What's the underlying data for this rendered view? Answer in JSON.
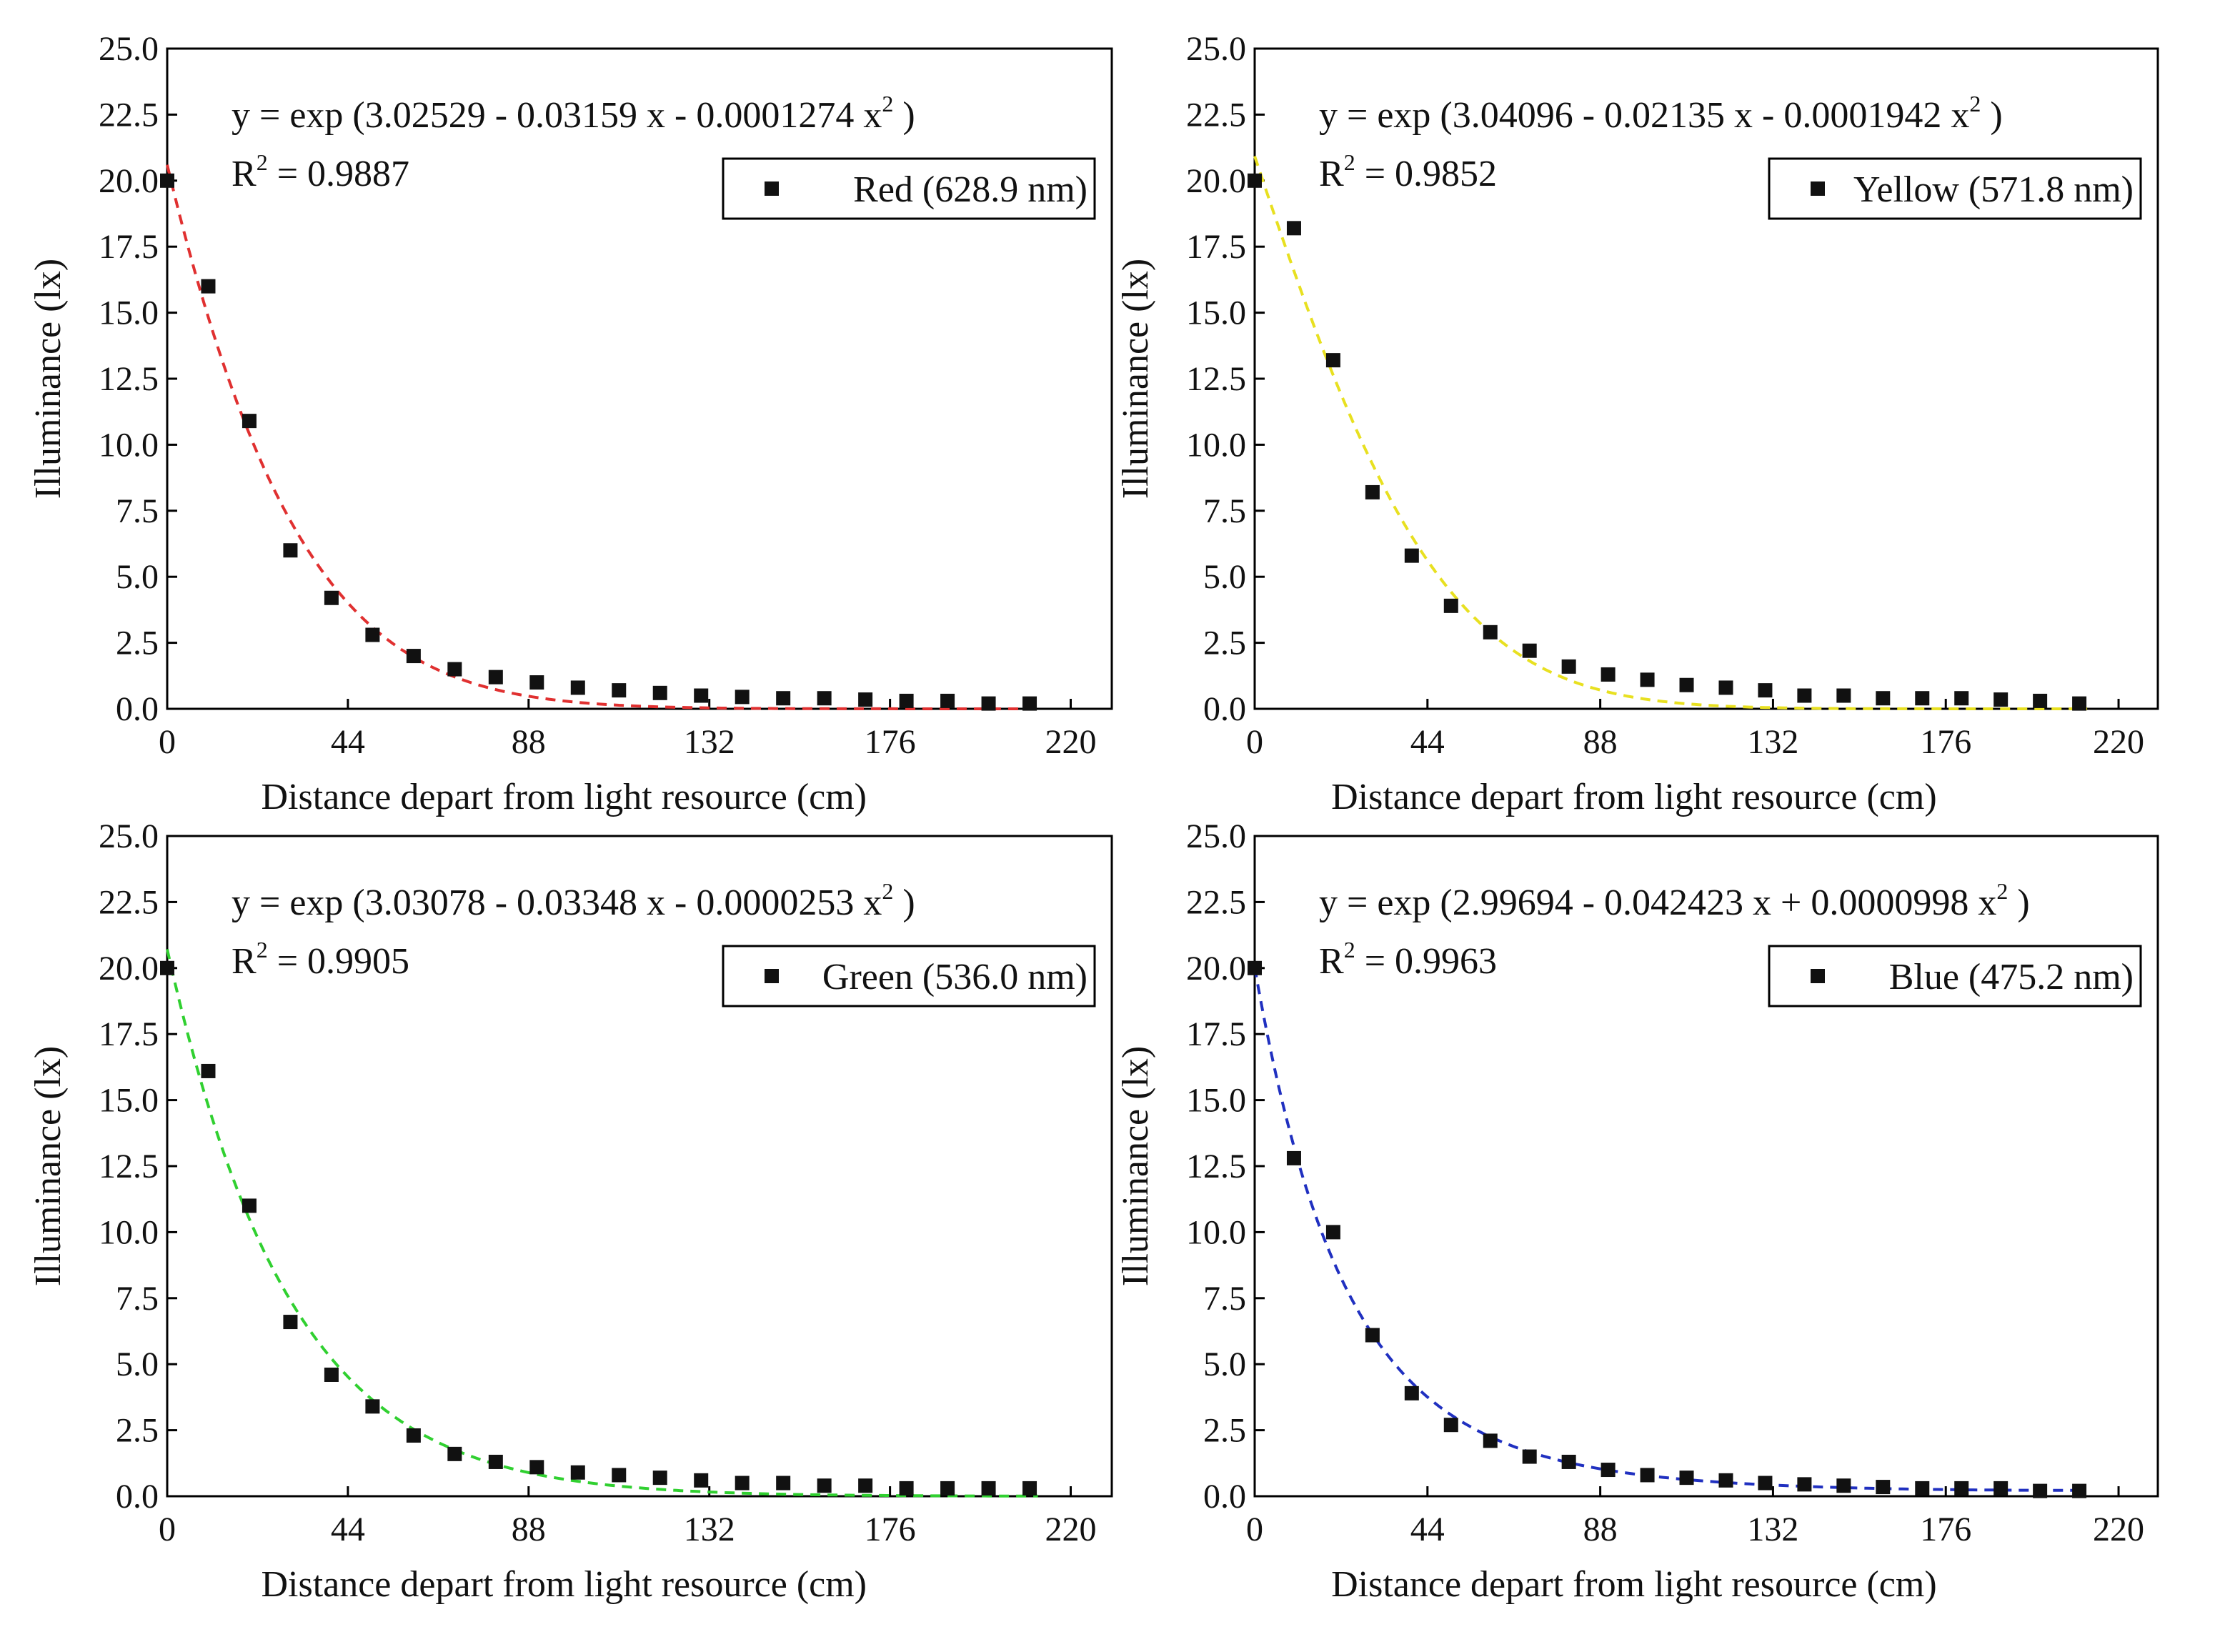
{
  "chart_data": [
    {
      "type": "scatter",
      "panel": "red",
      "xlabel": "Distance depart from light resource (cm)",
      "ylabel": "Illuminance (lx)",
      "xlim": [
        0,
        230
      ],
      "ylim": [
        0,
        25
      ],
      "xticks": [
        0,
        44,
        88,
        132,
        176,
        220
      ],
      "yticks": [
        0.0,
        2.5,
        5.0,
        7.5,
        10.0,
        12.5,
        15.0,
        17.5,
        20.0,
        22.5,
        25.0
      ],
      "legend": "Red (628.9 nm)",
      "legend_position": "top-right",
      "fit_color": "#e03030",
      "equation": {
        "prefix": "y = exp (3.02529 - 0.03159 x - 0.0001274 x",
        "sup": "2",
        "suffix": " )"
      },
      "r2": {
        "prefix": "R",
        "sup": "2",
        "value": " = 0.9887"
      },
      "fit": {
        "a": 3.02529,
        "b": -0.03159,
        "c": -0.0001274
      },
      "series": [
        {
          "name": "Red (628.9 nm)",
          "x": [
            0,
            10,
            20,
            30,
            40,
            50,
            60,
            70,
            80,
            90,
            100,
            110,
            120,
            130,
            140,
            150,
            160,
            170,
            180,
            190,
            200,
            210
          ],
          "y": [
            20.0,
            16.0,
            10.9,
            6.0,
            4.2,
            2.8,
            2.0,
            1.5,
            1.2,
            1.0,
            0.8,
            0.7,
            0.6,
            0.5,
            0.45,
            0.4,
            0.4,
            0.35,
            0.3,
            0.3,
            0.2,
            0.2
          ]
        }
      ]
    },
    {
      "type": "scatter",
      "panel": "yellow",
      "xlabel": "Distance depart from light resource (cm)",
      "ylabel": "Illuminance (lx)",
      "xlim": [
        0,
        230
      ],
      "ylim": [
        0,
        25
      ],
      "xticks": [
        0,
        44,
        88,
        132,
        176,
        220
      ],
      "yticks": [
        0.0,
        2.5,
        5.0,
        7.5,
        10.0,
        12.5,
        15.0,
        17.5,
        20.0,
        22.5,
        25.0
      ],
      "legend": "Yellow (571.8 nm)",
      "legend_position": "top-right",
      "fit_color": "#e8e020",
      "equation": {
        "prefix": "y = exp (3.04096 - 0.02135 x - 0.0001942 x",
        "sup": "2",
        "suffix": " )"
      },
      "r2": {
        "prefix": "R",
        "sup": "2",
        "value": " = 0.9852"
      },
      "fit": {
        "a": 3.04096,
        "b": -0.02135,
        "c": -0.0001942
      },
      "series": [
        {
          "name": "Yellow (571.8 nm)",
          "x": [
            0,
            10,
            20,
            30,
            40,
            50,
            60,
            70,
            80,
            90,
            100,
            110,
            120,
            130,
            140,
            150,
            160,
            170,
            180,
            190,
            200,
            210
          ],
          "y": [
            20.0,
            18.2,
            13.2,
            8.2,
            5.8,
            3.9,
            2.9,
            2.2,
            1.6,
            1.3,
            1.1,
            0.9,
            0.8,
            0.7,
            0.5,
            0.5,
            0.4,
            0.4,
            0.4,
            0.35,
            0.3,
            0.2
          ]
        }
      ]
    },
    {
      "type": "scatter",
      "panel": "green",
      "xlabel": "Distance depart from light resource (cm)",
      "ylabel": "Illuminance (lx)",
      "xlim": [
        0,
        230
      ],
      "ylim": [
        0,
        25
      ],
      "xticks": [
        0,
        44,
        88,
        132,
        176,
        220
      ],
      "yticks": [
        0.0,
        2.5,
        5.0,
        7.5,
        10.0,
        12.5,
        15.0,
        17.5,
        20.0,
        22.5,
        25.0
      ],
      "legend": "Green (536.0 nm)",
      "legend_position": "top-right",
      "fit_color": "#30d030",
      "equation": {
        "prefix": "y = exp (3.03078 - 0.03348 x - 0.0000253 x",
        "sup": "2",
        "suffix": " )"
      },
      "r2": {
        "prefix": "R",
        "sup": "2",
        "value": " = 0.9905"
      },
      "fit": {
        "a": 3.03078,
        "b": -0.03348,
        "c": -2.53e-05
      },
      "series": [
        {
          "name": "Green (536.0 nm)",
          "x": [
            0,
            10,
            20,
            30,
            40,
            50,
            60,
            70,
            80,
            90,
            100,
            110,
            120,
            130,
            140,
            150,
            160,
            170,
            180,
            190,
            200,
            210
          ],
          "y": [
            20.0,
            16.1,
            11.0,
            6.6,
            4.6,
            3.4,
            2.3,
            1.6,
            1.3,
            1.1,
            0.9,
            0.8,
            0.7,
            0.6,
            0.5,
            0.5,
            0.4,
            0.4,
            0.3,
            0.3,
            0.3,
            0.3
          ]
        }
      ]
    },
    {
      "type": "scatter",
      "panel": "blue",
      "xlabel": "Distance depart from light resource (cm)",
      "ylabel": "Illuminance (lx)",
      "xlim": [
        0,
        230
      ],
      "ylim": [
        0,
        25
      ],
      "xticks": [
        0,
        44,
        88,
        132,
        176,
        220
      ],
      "yticks": [
        0.0,
        2.5,
        5.0,
        7.5,
        10.0,
        12.5,
        15.0,
        17.5,
        20.0,
        22.5,
        25.0
      ],
      "legend": "Blue (475.2 nm)",
      "legend_position": "top-right",
      "fit_color": "#2030c0",
      "equation": {
        "prefix": "y = exp (2.99694 - 0.042423 x + 0.0000998 x",
        "sup": "2",
        "suffix": " )"
      },
      "r2": {
        "prefix": "R",
        "sup": "2",
        "value": " = 0.9963"
      },
      "fit": {
        "a": 2.99694,
        "b": -0.042423,
        "c": 9.98e-05
      },
      "series": [
        {
          "name": "Blue (475.2 nm)",
          "x": [
            0,
            10,
            20,
            30,
            40,
            50,
            60,
            70,
            80,
            90,
            100,
            110,
            120,
            130,
            140,
            150,
            160,
            170,
            180,
            190,
            200,
            210
          ],
          "y": [
            20.0,
            12.8,
            10.0,
            6.1,
            3.9,
            2.7,
            2.1,
            1.5,
            1.3,
            1.0,
            0.8,
            0.7,
            0.6,
            0.5,
            0.45,
            0.4,
            0.35,
            0.3,
            0.3,
            0.3,
            0.2,
            0.2
          ]
        }
      ]
    }
  ]
}
